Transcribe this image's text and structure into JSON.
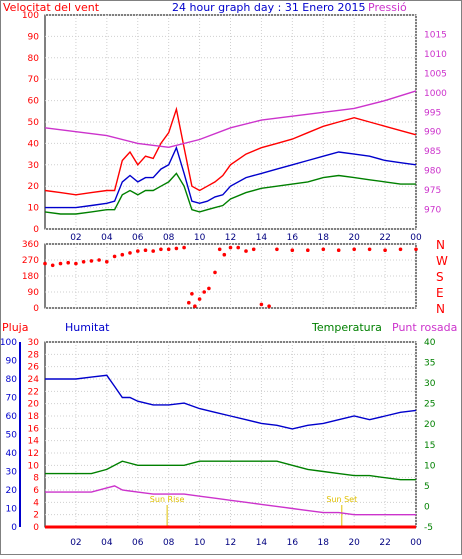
{
  "chart_data": [
    {
      "type": "line",
      "header": "24 hour graph day : 31 Enero 2015",
      "left_axis_label": "Velocitat del vent",
      "right_axis_label": "Pressió",
      "x_ticks": [
        "02",
        "04",
        "06",
        "08",
        "10",
        "12",
        "14",
        "16",
        "18",
        "20",
        "22",
        "00"
      ],
      "left_ticks": [
        "0",
        "10",
        "20",
        "30",
        "40",
        "50",
        "60",
        "70",
        "80",
        "90",
        "100"
      ],
      "right_ticks": [
        "970",
        "975",
        "980",
        "985",
        "990",
        "995",
        "1000",
        "1005",
        "1010",
        "1015"
      ],
      "ylim_left": [
        0,
        100
      ],
      "ylim_right": [
        965,
        1020
      ],
      "series": [
        {
          "color": "#ff0000",
          "axis": "left",
          "x": [
            0,
            1,
            2,
            3,
            4,
            4.5,
            5,
            5.5,
            6,
            6.5,
            7,
            7.5,
            8,
            8.5,
            9,
            9.5,
            10,
            10.5,
            11,
            11.5,
            12,
            13,
            14,
            15,
            16,
            17,
            18,
            19,
            20,
            21,
            22,
            23,
            24
          ],
          "y": [
            18,
            17,
            16,
            17,
            18,
            18,
            32,
            36,
            30,
            34,
            33,
            40,
            45,
            56,
            38,
            20,
            18,
            20,
            22,
            25,
            30,
            35,
            38,
            40,
            42,
            45,
            48,
            50,
            52,
            50,
            48,
            46,
            44
          ]
        },
        {
          "color": "#0000cc",
          "axis": "left",
          "x": [
            0,
            1,
            2,
            3,
            4,
            4.5,
            5,
            5.5,
            6,
            6.5,
            7,
            7.5,
            8,
            8.5,
            9,
            9.5,
            10,
            10.5,
            11,
            11.5,
            12,
            13,
            14,
            15,
            16,
            17,
            18,
            19,
            20,
            21,
            22,
            23,
            24
          ],
          "y": [
            10,
            10,
            10,
            11,
            12,
            13,
            22,
            25,
            22,
            24,
            24,
            28,
            30,
            38,
            26,
            13,
            12,
            13,
            15,
            16,
            20,
            24,
            26,
            28,
            30,
            32,
            34,
            36,
            35,
            34,
            32,
            31,
            30
          ]
        },
        {
          "color": "#008000",
          "axis": "left",
          "x": [
            0,
            1,
            2,
            3,
            4,
            4.5,
            5,
            5.5,
            6,
            6.5,
            7,
            7.5,
            8,
            8.5,
            9,
            9.5,
            10,
            10.5,
            11,
            11.5,
            12,
            13,
            14,
            15,
            16,
            17,
            18,
            19,
            20,
            21,
            22,
            23,
            24
          ],
          "y": [
            8,
            7,
            7,
            8,
            9,
            9,
            16,
            18,
            16,
            18,
            18,
            20,
            22,
            26,
            20,
            9,
            8,
            9,
            10,
            11,
            14,
            17,
            19,
            20,
            21,
            22,
            24,
            25,
            24,
            23,
            22,
            21,
            21
          ]
        },
        {
          "color": "#cc33cc",
          "axis": "right",
          "x": [
            0,
            2,
            4,
            6,
            8,
            10,
            12,
            14,
            16,
            18,
            20,
            22,
            24
          ],
          "y": [
            991,
            990,
            989,
            987,
            986,
            988,
            991,
            993,
            994,
            995,
            996,
            998,
            1000.5
          ]
        }
      ]
    },
    {
      "type": "scatter",
      "right_labels": [
        "N",
        "W",
        "S",
        "E",
        "N"
      ],
      "left_ticks": [
        "360",
        "270",
        "180",
        "90",
        "0"
      ],
      "ylim": [
        0,
        360
      ],
      "x_ticks": [
        "02",
        "04",
        "06",
        "08",
        "10",
        "12",
        "14",
        "16",
        "18",
        "20",
        "22",
        "00"
      ],
      "series": [
        {
          "color": "#ff0000",
          "x": [
            0,
            0.5,
            1,
            1.5,
            2,
            2.5,
            3,
            3.5,
            4,
            4.5,
            5,
            5.5,
            6,
            6.5,
            7,
            7.5,
            8,
            8.5,
            9,
            9.3,
            9.5,
            9.7,
            10,
            10.3,
            10.6,
            11,
            11.3,
            11.6,
            12,
            12.5,
            13,
            13.5,
            14,
            14.5,
            15,
            16,
            17,
            18,
            19,
            20,
            21,
            22,
            23,
            24
          ],
          "y": [
            250,
            240,
            250,
            255,
            250,
            260,
            265,
            270,
            260,
            290,
            300,
            310,
            320,
            325,
            320,
            330,
            330,
            335,
            340,
            30,
            80,
            10,
            50,
            90,
            110,
            200,
            330,
            300,
            340,
            340,
            320,
            330,
            20,
            10,
            330,
            325,
            325,
            330,
            325,
            330,
            330,
            325,
            330,
            330
          ]
        }
      ]
    },
    {
      "type": "line",
      "labels": {
        "rain": "Pluja",
        "humidity": "Humitat",
        "temperature": "Temperatura",
        "dewpoint": "Punt rosada"
      },
      "rain_ticks": [
        "0",
        "2",
        "4",
        "6",
        "8",
        "10",
        "12",
        "14",
        "16",
        "18",
        "20",
        "22",
        "24",
        "26",
        "28",
        "30"
      ],
      "humidity_ticks": [
        "0",
        "10",
        "20",
        "30",
        "40",
        "50",
        "60",
        "70",
        "80",
        "90",
        "100"
      ],
      "temp_ticks": [
        "-5",
        "0",
        "5",
        "10",
        "15",
        "20",
        "25",
        "30",
        "35",
        "40"
      ],
      "ylim_rain": [
        0,
        30
      ],
      "ylim_humidity": [
        0,
        100
      ],
      "ylim_temp": [
        -5,
        40
      ],
      "annotations": [
        "Sun Rise",
        "Sun Set"
      ],
      "x_ticks": [
        "02",
        "04",
        "06",
        "08",
        "10",
        "12",
        "14",
        "16",
        "18",
        "20",
        "22",
        "00"
      ],
      "series": [
        {
          "color": "#0000cc",
          "axis": "humidity",
          "x": [
            0,
            1,
            2,
            3,
            4,
            4.5,
            5,
            5.5,
            6,
            7,
            8,
            9,
            10,
            11,
            12,
            13,
            14,
            15,
            16,
            17,
            18,
            19,
            20,
            21,
            22,
            23,
            24
          ],
          "y": [
            80,
            80,
            80,
            81,
            82,
            76,
            70,
            70,
            68,
            66,
            66,
            67,
            64,
            62,
            60,
            58,
            56,
            55,
            53,
            55,
            56,
            58,
            60,
            58,
            60,
            62,
            63
          ]
        },
        {
          "color": "#008000",
          "axis": "temp",
          "x": [
            0,
            1,
            2,
            3,
            4,
            4.5,
            5,
            6,
            7,
            8,
            9,
            10,
            11,
            12,
            13,
            14,
            15,
            16,
            17,
            18,
            19,
            20,
            21,
            22,
            23,
            24
          ],
          "y": [
            8,
            8,
            8,
            8,
            9,
            10,
            11,
            10,
            10,
            10,
            10,
            11,
            11,
            11,
            11,
            11,
            11,
            10,
            9,
            8.5,
            8,
            7.5,
            7.5,
            7,
            6.5,
            6.5
          ]
        },
        {
          "color": "#cc33cc",
          "axis": "temp",
          "x": [
            0,
            1,
            2,
            3,
            4,
            4.5,
            5,
            6,
            7,
            8,
            9,
            10,
            11,
            12,
            13,
            14,
            15,
            16,
            17,
            18,
            19,
            20,
            21,
            22,
            23,
            24
          ],
          "y": [
            3.5,
            3.5,
            3.5,
            3.5,
            4.5,
            5,
            4,
            3.5,
            3,
            3,
            3,
            2.5,
            2,
            1.5,
            1,
            0.5,
            0,
            -0.5,
            -1,
            -1.5,
            -1.5,
            -2,
            -2,
            -2,
            -2,
            -2
          ]
        },
        {
          "color": "#ff0000",
          "axis": "rain",
          "x": [
            0,
            1,
            2,
            3,
            4,
            5,
            6,
            7,
            8,
            9,
            10,
            11,
            12,
            13,
            14,
            15,
            16,
            17,
            18,
            19,
            20,
            21,
            22,
            23,
            24
          ],
          "y": [
            0,
            0,
            0,
            0,
            0,
            0,
            0,
            0,
            0,
            0,
            0,
            0,
            0,
            0,
            0,
            0,
            0,
            0,
            0,
            0,
            0,
            0,
            0,
            0,
            0
          ]
        }
      ]
    }
  ]
}
